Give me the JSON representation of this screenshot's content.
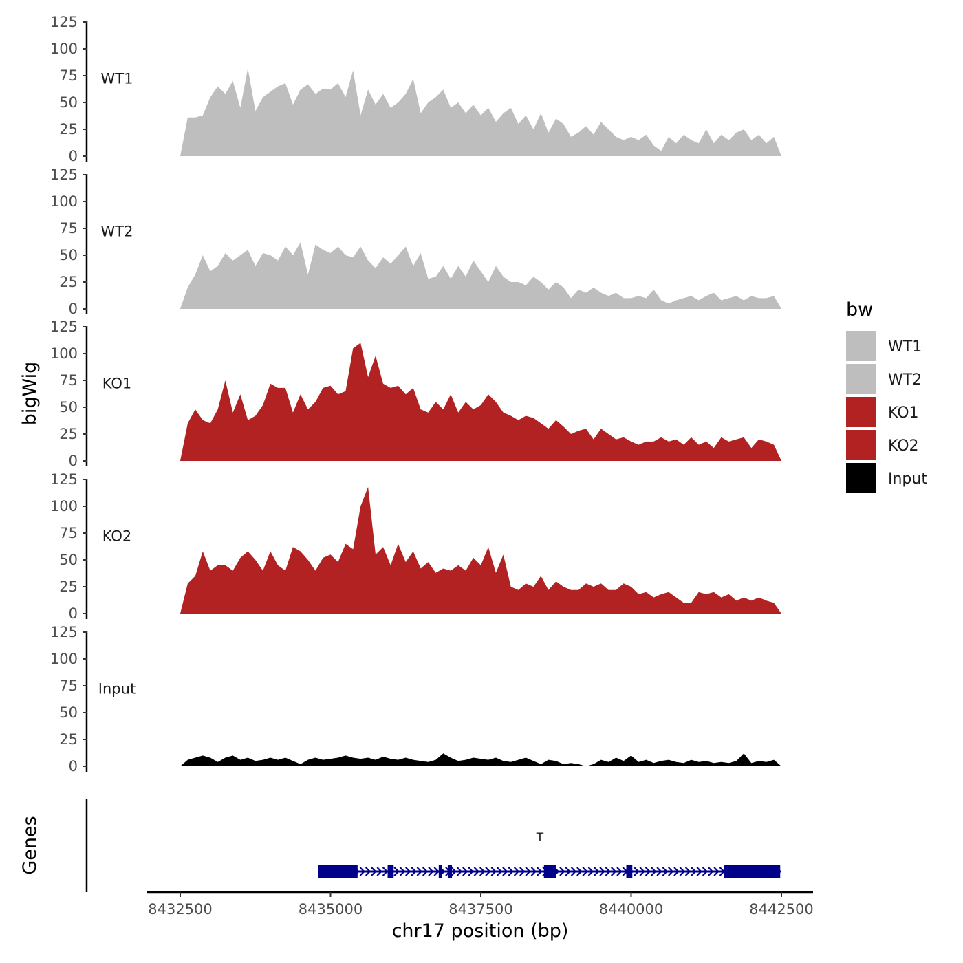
{
  "chart_data": {
    "type": "area",
    "title": "",
    "xlabel": "chr17 position (bp)",
    "ylabel": "bigWig",
    "genes_label": "Genes",
    "xlim": [
      8432500,
      8442500
    ],
    "ylim": [
      0,
      125
    ],
    "x_ticks": [
      8432500,
      8435000,
      8437500,
      8440000,
      8442500
    ],
    "y_ticks": [
      0,
      25,
      50,
      75,
      100,
      125
    ],
    "legend": {
      "title": "bw",
      "placement": "right",
      "items": [
        {
          "label": "WT1",
          "color": "#bebebe"
        },
        {
          "label": "WT2",
          "color": "#bebebe"
        },
        {
          "label": "KO1",
          "color": "#b22222"
        },
        {
          "label": "KO2",
          "color": "#b22222"
        },
        {
          "label": "Input",
          "color": "#000000"
        }
      ]
    },
    "tracks": [
      {
        "name": "WT1",
        "color": "#bebebe",
        "x": [
          8432500,
          8432625,
          8432750,
          8432875,
          8433000,
          8433125,
          8433250,
          8433375,
          8433500,
          8433625,
          8433750,
          8433875,
          8434000,
          8434125,
          8434250,
          8434375,
          8434500,
          8434625,
          8434750,
          8434875,
          8435000,
          8435125,
          8435250,
          8435375,
          8435500,
          8435625,
          8435750,
          8435875,
          8436000,
          8436125,
          8436250,
          8436375,
          8436500,
          8436625,
          8436750,
          8436875,
          8437000,
          8437125,
          8437250,
          8437375,
          8437500,
          8437625,
          8437750,
          8437875,
          8438000,
          8438125,
          8438250,
          8438375,
          8438500,
          8438625,
          8438750,
          8438875,
          8439000,
          8439125,
          8439250,
          8439375,
          8439500,
          8439625,
          8439750,
          8439875,
          8440000,
          8440125,
          8440250,
          8440375,
          8440500,
          8440625,
          8440750,
          8440875,
          8441000,
          8441125,
          8441250,
          8441375,
          8441500,
          8441625,
          8441750,
          8441875,
          8442000,
          8442125,
          8442250,
          8442375,
          8442500
        ],
        "y": [
          0,
          36,
          36,
          38,
          55,
          65,
          58,
          70,
          45,
          82,
          42,
          55,
          60,
          65,
          68,
          48,
          62,
          67,
          58,
          63,
          62,
          68,
          55,
          80,
          38,
          62,
          48,
          58,
          45,
          50,
          58,
          72,
          40,
          50,
          55,
          62,
          45,
          50,
          40,
          48,
          38,
          45,
          32,
          40,
          45,
          30,
          38,
          25,
          40,
          22,
          35,
          30,
          18,
          22,
          28,
          20,
          32,
          25,
          18,
          15,
          18,
          15,
          20,
          10,
          5,
          18,
          12,
          20,
          15,
          12,
          25,
          12,
          20,
          15,
          22,
          25,
          15,
          20,
          12,
          18,
          0
        ]
      },
      {
        "name": "WT2",
        "color": "#bebebe",
        "x": [
          8432500,
          8432625,
          8432750,
          8432875,
          8433000,
          8433125,
          8433250,
          8433375,
          8433500,
          8433625,
          8433750,
          8433875,
          8434000,
          8434125,
          8434250,
          8434375,
          8434500,
          8434625,
          8434750,
          8434875,
          8435000,
          8435125,
          8435250,
          8435375,
          8435500,
          8435625,
          8435750,
          8435875,
          8436000,
          8436125,
          8436250,
          8436375,
          8436500,
          8436625,
          8436750,
          8436875,
          8437000,
          8437125,
          8437250,
          8437375,
          8437500,
          8437625,
          8437750,
          8437875,
          8438000,
          8438125,
          8438250,
          8438375,
          8438500,
          8438625,
          8438750,
          8438875,
          8439000,
          8439125,
          8439250,
          8439375,
          8439500,
          8439625,
          8439750,
          8439875,
          8440000,
          8440125,
          8440250,
          8440375,
          8440500,
          8440625,
          8440750,
          8440875,
          8441000,
          8441125,
          8441250,
          8441375,
          8441500,
          8441625,
          8441750,
          8441875,
          8442000,
          8442125,
          8442250,
          8442375,
          8442500
        ],
        "y": [
          0,
          20,
          32,
          50,
          35,
          40,
          52,
          45,
          50,
          55,
          40,
          52,
          50,
          45,
          58,
          50,
          62,
          32,
          60,
          55,
          52,
          58,
          50,
          48,
          58,
          45,
          38,
          48,
          42,
          50,
          58,
          40,
          52,
          28,
          30,
          40,
          28,
          40,
          30,
          45,
          35,
          25,
          40,
          30,
          25,
          25,
          22,
          30,
          25,
          18,
          25,
          20,
          10,
          18,
          15,
          20,
          15,
          12,
          15,
          10,
          10,
          12,
          10,
          18,
          8,
          5,
          8,
          10,
          12,
          8,
          12,
          15,
          8,
          10,
          12,
          8,
          12,
          10,
          10,
          12,
          0
        ]
      },
      {
        "name": "KO1",
        "color": "#b22222",
        "x": [
          8432500,
          8432625,
          8432750,
          8432875,
          8433000,
          8433125,
          8433250,
          8433375,
          8433500,
          8433625,
          8433750,
          8433875,
          8434000,
          8434125,
          8434250,
          8434375,
          8434500,
          8434625,
          8434750,
          8434875,
          8435000,
          8435125,
          8435250,
          8435375,
          8435500,
          8435625,
          8435750,
          8435875,
          8436000,
          8436125,
          8436250,
          8436375,
          8436500,
          8436625,
          8436750,
          8436875,
          8437000,
          8437125,
          8437250,
          8437375,
          8437500,
          8437625,
          8437750,
          8437875,
          8438000,
          8438125,
          8438250,
          8438375,
          8438500,
          8438625,
          8438750,
          8438875,
          8439000,
          8439125,
          8439250,
          8439375,
          8439500,
          8439625,
          8439750,
          8439875,
          8440000,
          8440125,
          8440250,
          8440375,
          8440500,
          8440625,
          8440750,
          8440875,
          8441000,
          8441125,
          8441250,
          8441375,
          8441500,
          8441625,
          8441750,
          8441875,
          8442000,
          8442125,
          8442250,
          8442375,
          8442500
        ],
        "y": [
          0,
          35,
          48,
          38,
          35,
          48,
          75,
          45,
          62,
          38,
          42,
          52,
          72,
          68,
          68,
          45,
          62,
          48,
          55,
          68,
          70,
          62,
          65,
          105,
          110,
          78,
          98,
          72,
          68,
          70,
          62,
          68,
          48,
          45,
          55,
          48,
          62,
          45,
          55,
          48,
          52,
          62,
          55,
          45,
          42,
          38,
          42,
          40,
          35,
          30,
          38,
          32,
          25,
          28,
          30,
          20,
          30,
          25,
          20,
          22,
          18,
          15,
          18,
          18,
          22,
          18,
          20,
          15,
          22,
          15,
          18,
          12,
          22,
          18,
          20,
          22,
          12,
          20,
          18,
          15,
          0
        ]
      },
      {
        "name": "KO2",
        "color": "#b22222",
        "x": [
          8432500,
          8432625,
          8432750,
          8432875,
          8433000,
          8433125,
          8433250,
          8433375,
          8433500,
          8433625,
          8433750,
          8433875,
          8434000,
          8434125,
          8434250,
          8434375,
          8434500,
          8434625,
          8434750,
          8434875,
          8435000,
          8435125,
          8435250,
          8435375,
          8435500,
          8435625,
          8435750,
          8435875,
          8436000,
          8436125,
          8436250,
          8436375,
          8436500,
          8436625,
          8436750,
          8436875,
          8437000,
          8437125,
          8437250,
          8437375,
          8437500,
          8437625,
          8437750,
          8437875,
          8438000,
          8438125,
          8438250,
          8438375,
          8438500,
          8438625,
          8438750,
          8438875,
          8439000,
          8439125,
          8439250,
          8439375,
          8439500,
          8439625,
          8439750,
          8439875,
          8440000,
          8440125,
          8440250,
          8440375,
          8440500,
          8440625,
          8440750,
          8440875,
          8441000,
          8441125,
          8441250,
          8441375,
          8441500,
          8441625,
          8441750,
          8441875,
          8442000,
          8442125,
          8442250,
          8442375,
          8442500
        ],
        "y": [
          0,
          28,
          35,
          58,
          40,
          45,
          45,
          40,
          52,
          58,
          50,
          40,
          58,
          45,
          40,
          62,
          58,
          50,
          40,
          52,
          55,
          48,
          65,
          60,
          100,
          118,
          55,
          62,
          45,
          65,
          48,
          58,
          42,
          48,
          38,
          42,
          40,
          45,
          40,
          52,
          45,
          62,
          38,
          55,
          25,
          22,
          28,
          25,
          35,
          22,
          30,
          25,
          22,
          22,
          28,
          25,
          28,
          22,
          22,
          28,
          25,
          18,
          20,
          15,
          18,
          20,
          15,
          10,
          10,
          20,
          18,
          20,
          15,
          18,
          12,
          15,
          12,
          15,
          12,
          10,
          0
        ]
      },
      {
        "name": "Input",
        "color": "#000000",
        "x": [
          8432500,
          8432625,
          8432750,
          8432875,
          8433000,
          8433125,
          8433250,
          8433375,
          8433500,
          8433625,
          8433750,
          8433875,
          8434000,
          8434125,
          8434250,
          8434375,
          8434500,
          8434625,
          8434750,
          8434875,
          8435000,
          8435125,
          8435250,
          8435375,
          8435500,
          8435625,
          8435750,
          8435875,
          8436000,
          8436125,
          8436250,
          8436375,
          8436500,
          8436625,
          8436750,
          8436875,
          8437000,
          8437125,
          8437250,
          8437375,
          8437500,
          8437625,
          8437750,
          8437875,
          8438000,
          8438125,
          8438250,
          8438375,
          8438500,
          8438625,
          8438750,
          8438875,
          8439000,
          8439125,
          8439250,
          8439375,
          8439500,
          8439625,
          8439750,
          8439875,
          8440000,
          8440125,
          8440250,
          8440375,
          8440500,
          8440625,
          8440750,
          8440875,
          8441000,
          8441125,
          8441250,
          8441375,
          8441500,
          8441625,
          8441750,
          8441875,
          8442000,
          8442125,
          8442250,
          8442375,
          8442500
        ],
        "y": [
          0,
          6,
          8,
          10,
          8,
          4,
          8,
          10,
          6,
          8,
          5,
          6,
          8,
          6,
          8,
          5,
          2,
          6,
          8,
          6,
          7,
          8,
          10,
          8,
          7,
          8,
          6,
          9,
          7,
          6,
          8,
          6,
          5,
          4,
          6,
          12,
          8,
          5,
          6,
          8,
          7,
          6,
          8,
          5,
          4,
          6,
          8,
          5,
          2,
          6,
          5,
          2,
          3,
          2,
          0,
          2,
          6,
          4,
          8,
          5,
          10,
          4,
          6,
          3,
          5,
          6,
          4,
          3,
          6,
          4,
          5,
          3,
          4,
          3,
          5,
          12,
          3,
          5,
          4,
          6,
          0
        ]
      }
    ],
    "gene_track": {
      "gene_name": "T",
      "color": "#00008b",
      "strand": "+",
      "start": 8434800,
      "end": 8442500,
      "exons": [
        [
          8434800,
          8435100
        ],
        [
          8435000,
          8435450
        ],
        [
          8435950,
          8436050
        ],
        [
          8436800,
          8436850
        ],
        [
          8436950,
          8437020
        ],
        [
          8438550,
          8438750
        ],
        [
          8439920,
          8440020
        ],
        [
          8441550,
          8442480
        ]
      ]
    }
  }
}
